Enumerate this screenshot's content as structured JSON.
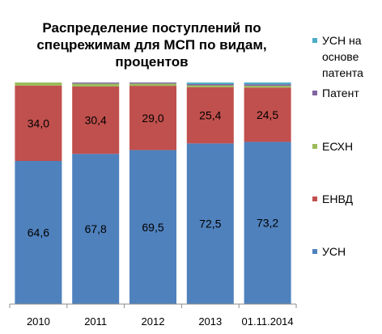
{
  "chart_data": {
    "type": "bar",
    "stacked": true,
    "title_lines": [
      "Распределение поступлений по",
      "спецрежимам  для МСП по видам,",
      "процентов"
    ],
    "categories": [
      "2010",
      "2011",
      "2012",
      "2013",
      "01.11.2014"
    ],
    "ylim": [
      0,
      100
    ],
    "series": [
      {
        "name": "УСН",
        "color": "#4F81BD",
        "values": [
          64.6,
          67.8,
          69.5,
          72.5,
          73.2
        ],
        "labels": [
          "64,6",
          "67,8",
          "69,5",
          "72,5",
          "73,2"
        ]
      },
      {
        "name": "ЕНВД",
        "color": "#C0504D",
        "values": [
          34.0,
          30.4,
          29.0,
          25.4,
          24.5
        ],
        "labels": [
          "34,0",
          "30,4",
          "29,0",
          "25,4",
          "24,5"
        ]
      },
      {
        "name": "ЕСХН",
        "color": "#9BBB59",
        "values": [
          1.4,
          1.3,
          1.0,
          0.8,
          0.8
        ]
      },
      {
        "name": "Патент",
        "color": "#8064A2",
        "values": [
          0.0,
          0.5,
          0.5,
          0.6,
          0.7
        ]
      },
      {
        "name": "УСН на основе патента",
        "legend_lines": [
          "УСН на",
          "основе",
          "патента"
        ],
        "color": "#4BACC6",
        "values": [
          0.0,
          0.0,
          0.0,
          0.7,
          0.8
        ]
      }
    ],
    "legend_position": "right",
    "grid": false
  }
}
